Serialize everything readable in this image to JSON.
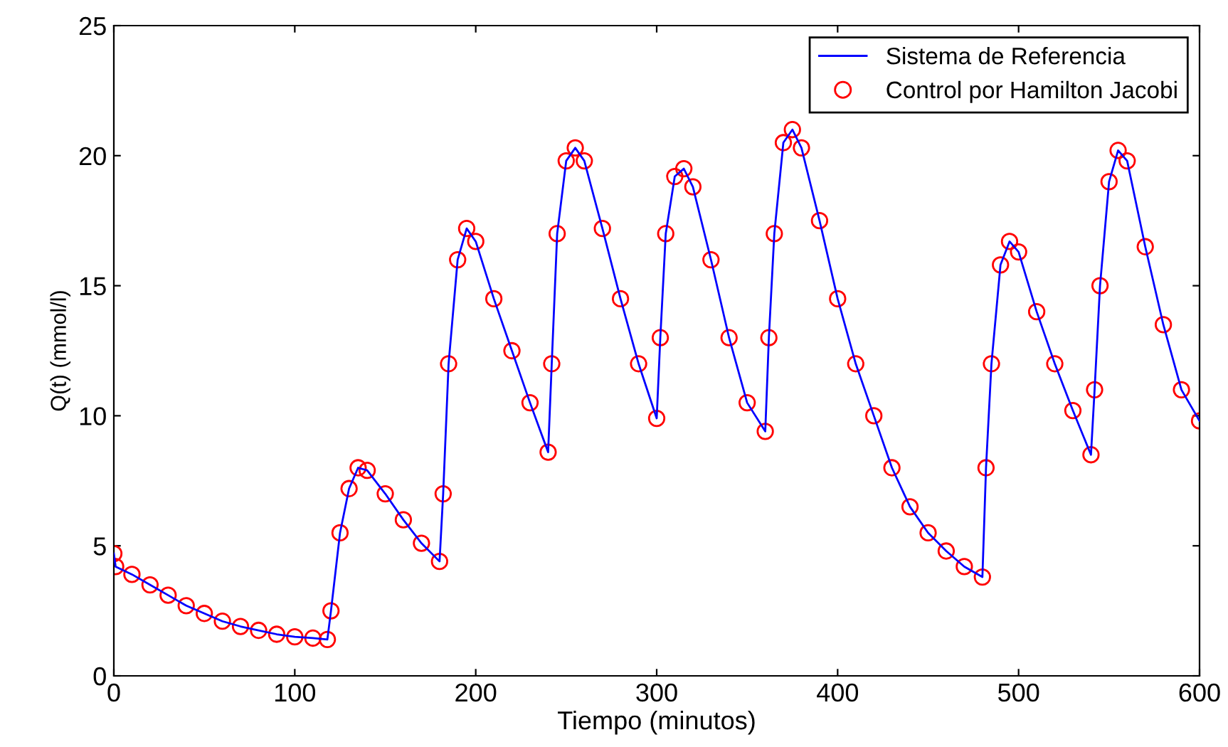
{
  "chart_data": {
    "type": "line",
    "xlabel": "Tiempo (minutos)",
    "ylabel": "Q(t) (mmol/l)",
    "x": [
      0,
      1,
      10,
      20,
      30,
      40,
      50,
      60,
      70,
      80,
      90,
      100,
      110,
      118,
      120,
      125,
      130,
      135,
      140,
      150,
      160,
      170,
      180,
      182,
      185,
      190,
      195,
      200,
      210,
      220,
      230,
      240,
      242,
      245,
      250,
      255,
      260,
      270,
      280,
      290,
      300,
      302,
      305,
      310,
      315,
      320,
      330,
      340,
      350,
      360,
      362,
      365,
      370,
      375,
      380,
      390,
      400,
      410,
      420,
      430,
      440,
      450,
      460,
      470,
      480,
      482,
      485,
      490,
      495,
      500,
      510,
      520,
      530,
      540,
      542,
      545,
      550,
      555,
      560,
      570,
      580,
      590,
      600
    ],
    "series": [
      {
        "name": "Sistema de Referencia",
        "color": "#0000ff",
        "marker": "none",
        "line_style": "solid",
        "values": [
          4.7,
          4.2,
          3.9,
          3.5,
          3.1,
          2.7,
          2.4,
          2.1,
          1.9,
          1.75,
          1.6,
          1.5,
          1.45,
          1.4,
          2.5,
          5.5,
          7.2,
          8.0,
          7.9,
          7.0,
          6.0,
          5.1,
          4.4,
          7,
          12,
          16,
          17.2,
          16.7,
          14.5,
          12.5,
          10.5,
          8.6,
          12,
          17,
          19.8,
          20.3,
          19.8,
          17.2,
          14.5,
          12,
          9.9,
          13,
          17,
          19.2,
          19.5,
          18.8,
          16,
          13,
          10.5,
          9.4,
          13,
          17,
          20.5,
          21,
          20.3,
          17.5,
          14.5,
          12,
          10,
          8,
          6.5,
          5.5,
          4.8,
          4.2,
          3.8,
          8,
          12,
          15.8,
          16.7,
          16.3,
          14,
          12,
          10.2,
          8.5,
          11,
          15,
          19,
          20.2,
          19.8,
          16.5,
          13.5,
          11,
          9.8
        ]
      },
      {
        "name": "Control por Hamilton Jacobi",
        "type": "scatter",
        "color": "#ff0000",
        "marker": "circle",
        "values": [
          4.7,
          4.2,
          3.9,
          3.5,
          3.1,
          2.7,
          2.4,
          2.1,
          1.9,
          1.75,
          1.6,
          1.5,
          1.45,
          1.4,
          2.5,
          5.5,
          7.2,
          8.0,
          7.9,
          7.0,
          6.0,
          5.1,
          4.4,
          7,
          12,
          16,
          17.2,
          16.7,
          14.5,
          12.5,
          10.5,
          8.6,
          12,
          17,
          19.8,
          20.3,
          19.8,
          17.2,
          14.5,
          12,
          9.9,
          13,
          17,
          19.2,
          19.5,
          18.8,
          16,
          13,
          10.5,
          9.4,
          13,
          17,
          20.5,
          21,
          20.3,
          17.5,
          14.5,
          12,
          10,
          8,
          6.5,
          5.5,
          4.8,
          4.2,
          3.8,
          8,
          12,
          15.8,
          16.7,
          16.3,
          14,
          12,
          10.2,
          8.5,
          11,
          15,
          19,
          20.2,
          19.8,
          16.5,
          13.5,
          11,
          9.8
        ]
      }
    ],
    "xlim": [
      0,
      600
    ],
    "xticks": [
      0,
      100,
      200,
      300,
      400,
      500,
      600
    ],
    "ylim": [
      0,
      25
    ],
    "yticks": [
      0,
      5,
      10,
      15,
      20,
      25
    ],
    "grid": false,
    "legend": "top right"
  }
}
